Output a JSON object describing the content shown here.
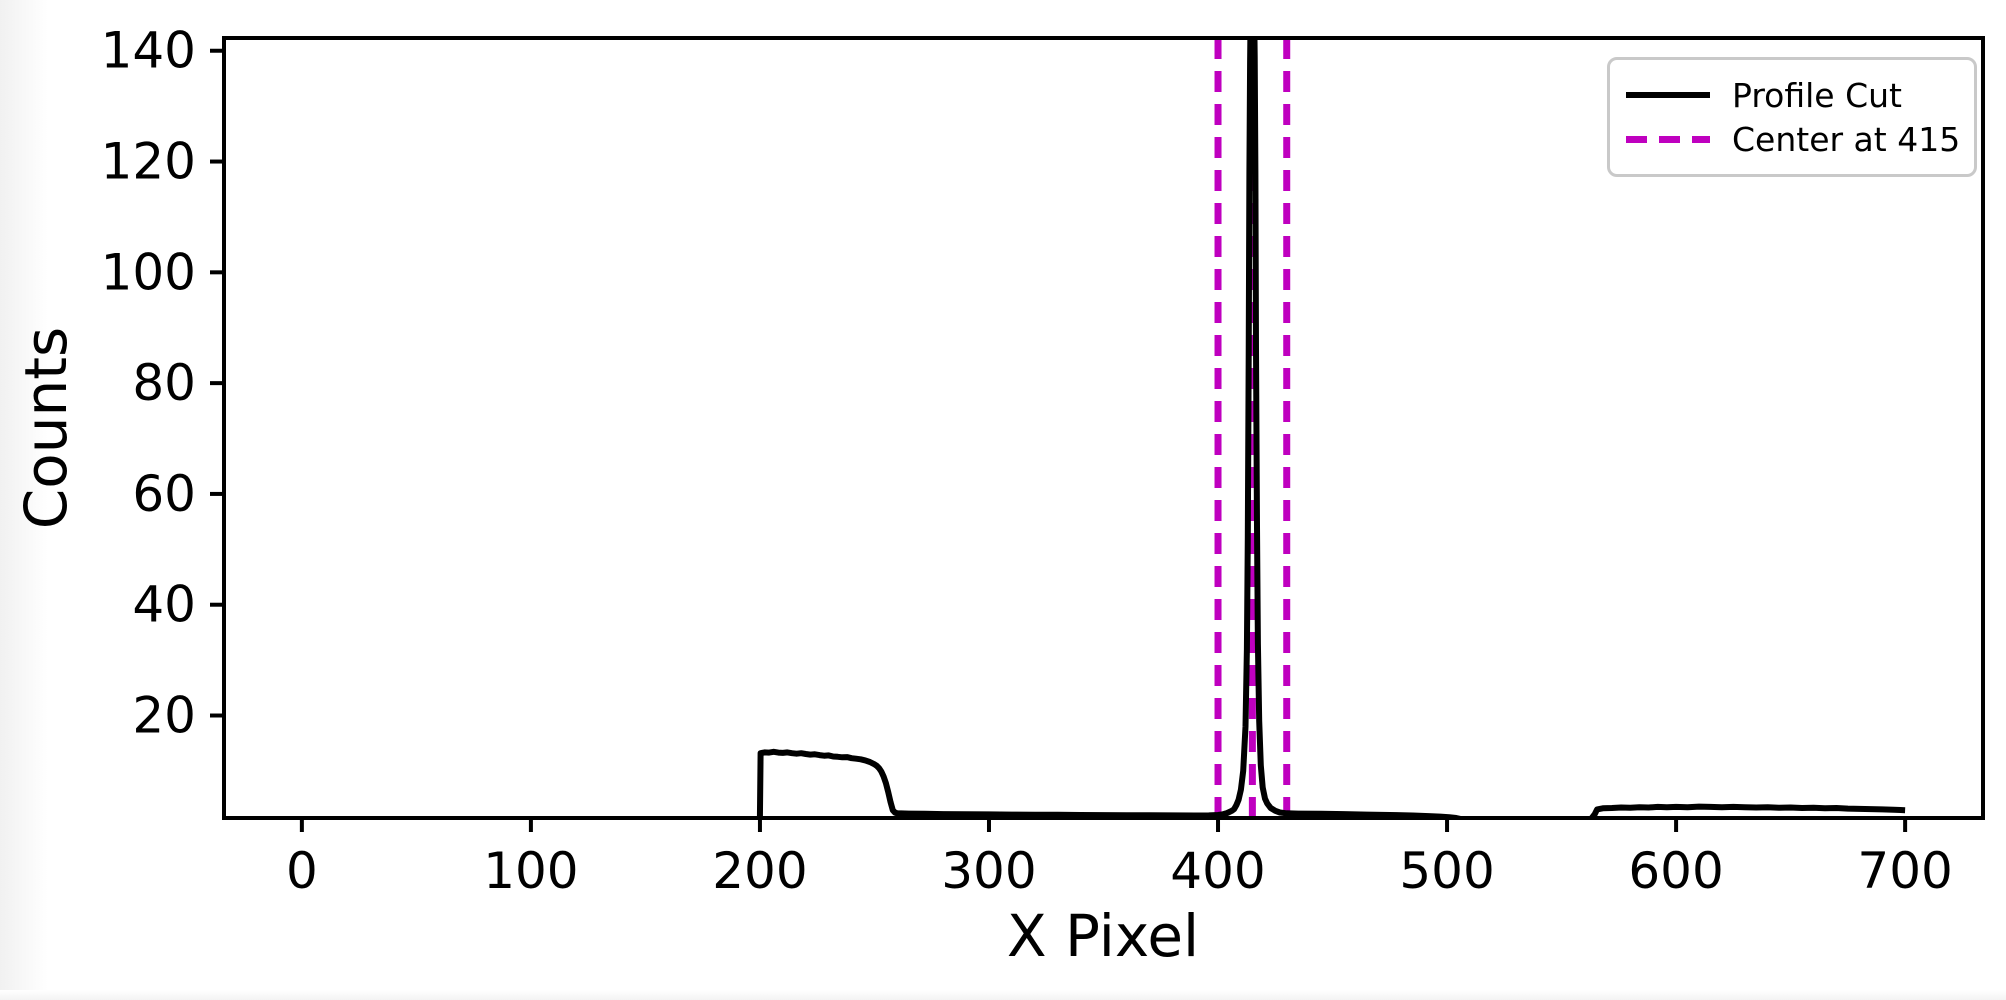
{
  "page": {
    "background": "#ffffff"
  },
  "chart_data": {
    "type": "line",
    "title": "",
    "xlabel": "X Pixel",
    "ylabel": "Counts",
    "xlim": [
      -34,
      734
    ],
    "ylim": [
      1.5,
      142.3
    ],
    "x_ticks": [
      0,
      100,
      200,
      300,
      400,
      500,
      600,
      700
    ],
    "y_ticks": [
      20,
      40,
      60,
      80,
      100,
      120,
      140
    ],
    "grid": false,
    "axis_color": "#000000",
    "legend": {
      "position": "upper right",
      "entries": [
        {
          "label": "Profile Cut",
          "color": "#000000",
          "style": "solid"
        },
        {
          "label": "Center at 415",
          "color": "#bf00bf",
          "style": "dashed"
        }
      ]
    },
    "series": [
      {
        "name": "Profile Cut",
        "type": "line",
        "color": "#000000",
        "line_width": 6,
        "points": [
          [
            200,
            1.45
          ],
          [
            200.3,
            13.2
          ],
          [
            202,
            13.35
          ],
          [
            204,
            13.3
          ],
          [
            206,
            13.45
          ],
          [
            208,
            13.3
          ],
          [
            210,
            13.25
          ],
          [
            212,
            13.35
          ],
          [
            214,
            13.2
          ],
          [
            216,
            13.1
          ],
          [
            218,
            13.2
          ],
          [
            220,
            13.05
          ],
          [
            222,
            12.95
          ],
          [
            224,
            13.0
          ],
          [
            226,
            12.85
          ],
          [
            228,
            12.75
          ],
          [
            230,
            12.8
          ],
          [
            232,
            12.6
          ],
          [
            234,
            12.55
          ],
          [
            236,
            12.45
          ],
          [
            238,
            12.5
          ],
          [
            240,
            12.3
          ],
          [
            242,
            12.2
          ],
          [
            244,
            12.1
          ],
          [
            246,
            11.9
          ],
          [
            248,
            11.6
          ],
          [
            250,
            11.2
          ],
          [
            251,
            10.9
          ],
          [
            252,
            10.5
          ],
          [
            253,
            9.9
          ],
          [
            254,
            9.0
          ],
          [
            255,
            7.8
          ],
          [
            256,
            6.2
          ],
          [
            257,
            4.4
          ],
          [
            258,
            2.9
          ],
          [
            259,
            2.45
          ],
          [
            260,
            2.35
          ],
          [
            265,
            2.3
          ],
          [
            272,
            2.25
          ],
          [
            280,
            2.2
          ],
          [
            290,
            2.18
          ],
          [
            300,
            2.15
          ],
          [
            310,
            2.12
          ],
          [
            320,
            2.1
          ],
          [
            330,
            2.08
          ],
          [
            340,
            2.05
          ],
          [
            350,
            2.03
          ],
          [
            360,
            2.0
          ],
          [
            370,
            1.98
          ],
          [
            380,
            1.97
          ],
          [
            390,
            1.96
          ],
          [
            396,
            1.97
          ],
          [
            400,
            2.05
          ],
          [
            402,
            2.15
          ],
          [
            404,
            2.4
          ],
          [
            406,
            2.8
          ],
          [
            407,
            3.1
          ],
          [
            408,
            3.8
          ],
          [
            409,
            4.8
          ],
          [
            410,
            6.6
          ],
          [
            411,
            10
          ],
          [
            412,
            18
          ],
          [
            412.6,
            32
          ],
          [
            413,
            52
          ],
          [
            413.4,
            85
          ],
          [
            413.7,
            118
          ],
          [
            414,
            138
          ],
          [
            414.25,
            148
          ],
          [
            415.75,
            148
          ],
          [
            416,
            139
          ],
          [
            416.3,
            118
          ],
          [
            416.6,
            86
          ],
          [
            417,
            54
          ],
          [
            417.4,
            33
          ],
          [
            418,
            19
          ],
          [
            418.7,
            11
          ],
          [
            419.5,
            7
          ],
          [
            420.5,
            5
          ],
          [
            421.5,
            4.1
          ],
          [
            423,
            3.3
          ],
          [
            425,
            2.8
          ],
          [
            427,
            2.5
          ],
          [
            430,
            2.35
          ],
          [
            435,
            2.3
          ],
          [
            445,
            2.25
          ],
          [
            455,
            2.2
          ],
          [
            465,
            2.12
          ],
          [
            475,
            2.05
          ],
          [
            485,
            1.95
          ],
          [
            492,
            1.85
          ],
          [
            497,
            1.75
          ],
          [
            501,
            1.65
          ],
          [
            504,
            1.5
          ],
          [
            506,
            1.3
          ],
          [
            510,
            1.1
          ],
          [
            520,
            1.0
          ],
          [
            540,
            1.0
          ],
          [
            555,
            1.05
          ],
          [
            561,
            1.2
          ],
          [
            563,
            1.4
          ],
          [
            564.5,
            2.2
          ],
          [
            565.5,
            3.05
          ],
          [
            568,
            3.25
          ],
          [
            572,
            3.3
          ],
          [
            576,
            3.4
          ],
          [
            580,
            3.35
          ],
          [
            584,
            3.45
          ],
          [
            588,
            3.4
          ],
          [
            592,
            3.5
          ],
          [
            596,
            3.45
          ],
          [
            600,
            3.5
          ],
          [
            605,
            3.45
          ],
          [
            610,
            3.55
          ],
          [
            615,
            3.5
          ],
          [
            620,
            3.45
          ],
          [
            625,
            3.5
          ],
          [
            630,
            3.45
          ],
          [
            635,
            3.4
          ],
          [
            640,
            3.45
          ],
          [
            645,
            3.35
          ],
          [
            650,
            3.4
          ],
          [
            655,
            3.3
          ],
          [
            660,
            3.35
          ],
          [
            665,
            3.25
          ],
          [
            670,
            3.3
          ],
          [
            675,
            3.2
          ],
          [
            680,
            3.15
          ],
          [
            685,
            3.1
          ],
          [
            690,
            3.05
          ],
          [
            695,
            3.0
          ],
          [
            698,
            2.95
          ],
          [
            700,
            2.9
          ]
        ]
      },
      {
        "name": "Center at 415",
        "type": "vlines",
        "color": "#bf00bf",
        "line_width": 7,
        "dash": [
          21,
          12
        ],
        "x_values": [
          400,
          415,
          430
        ]
      }
    ]
  }
}
